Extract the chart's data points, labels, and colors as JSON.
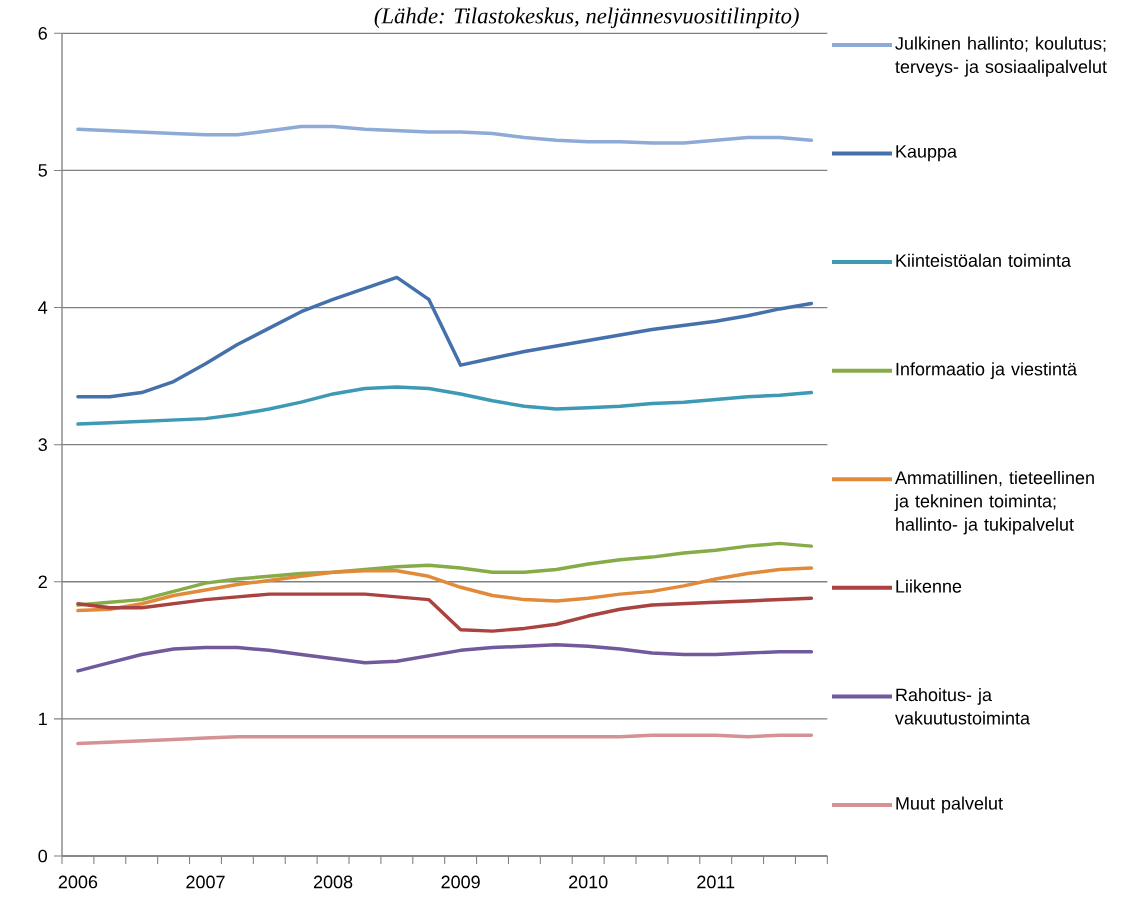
{
  "chart_data": {
    "type": "line",
    "annotations": [
      "(Lähde: Tilastokeskus, neljännesvuositilinpito)"
    ],
    "categories": [
      "2006",
      null,
      null,
      null,
      "2007",
      null,
      null,
      null,
      "2008",
      null,
      null,
      null,
      "2009",
      null,
      null,
      null,
      "2010",
      null,
      null,
      null,
      "2011",
      null,
      null,
      null
    ],
    "ylim": [
      0,
      6
    ],
    "yticks": [
      0,
      1,
      2,
      3,
      4,
      5,
      6
    ],
    "grid": "y",
    "legend": "right",
    "line_style": "solid",
    "series": [
      {
        "name": "Julkinen hallinto; koulutus; terveys- ja sosiaalipalvelut",
        "color": "#8eaad6",
        "values": [
          5.3,
          5.29,
          5.28,
          5.27,
          5.26,
          5.26,
          5.29,
          5.32,
          5.32,
          5.3,
          5.29,
          5.28,
          5.28,
          5.27,
          5.24,
          5.22,
          5.21,
          5.21,
          5.2,
          5.2,
          5.22,
          5.24,
          5.24,
          5.22
        ]
      },
      {
        "name": "Kauppa",
        "color": "#4470ab",
        "values": [
          3.35,
          3.35,
          3.38,
          3.46,
          3.59,
          3.73,
          3.85,
          3.97,
          4.06,
          4.14,
          4.22,
          4.06,
          3.58,
          3.63,
          3.68,
          3.72,
          3.76,
          3.8,
          3.84,
          3.87,
          3.9,
          3.94,
          3.99,
          4.03
        ]
      },
      {
        "name": "Kiinteistöalan toiminta",
        "color": "#3e9ab4",
        "values": [
          3.15,
          3.16,
          3.17,
          3.18,
          3.19,
          3.22,
          3.26,
          3.31,
          3.37,
          3.41,
          3.42,
          3.41,
          3.37,
          3.32,
          3.28,
          3.26,
          3.27,
          3.28,
          3.3,
          3.31,
          3.33,
          3.35,
          3.36,
          3.38
        ]
      },
      {
        "name": "Informaatio ja viestintä",
        "color": "#86ac48",
        "values": [
          1.83,
          1.85,
          1.87,
          1.93,
          1.99,
          2.02,
          2.04,
          2.06,
          2.07,
          2.09,
          2.11,
          2.12,
          2.1,
          2.07,
          2.07,
          2.09,
          2.13,
          2.16,
          2.18,
          2.21,
          2.23,
          2.26,
          2.28,
          2.26
        ]
      },
      {
        "name": "Ammatillinen, tieteellinen ja tekninen toiminta; hallinto- ja tukipalvelut",
        "color": "#e08a3a",
        "values": [
          1.79,
          1.8,
          1.84,
          1.9,
          1.94,
          1.98,
          2.01,
          2.04,
          2.07,
          2.08,
          2.08,
          2.04,
          1.96,
          1.9,
          1.87,
          1.86,
          1.88,
          1.91,
          1.93,
          1.97,
          2.02,
          2.06,
          2.09,
          2.1
        ]
      },
      {
        "name": "Liikenne",
        "color": "#aa4240",
        "values": [
          1.84,
          1.81,
          1.81,
          1.84,
          1.87,
          1.89,
          1.91,
          1.91,
          1.91,
          1.91,
          1.89,
          1.87,
          1.65,
          1.64,
          1.66,
          1.69,
          1.75,
          1.8,
          1.83,
          1.84,
          1.85,
          1.86,
          1.87,
          1.88
        ]
      },
      {
        "name": "Rahoitus- ja vakuutustoiminta",
        "color": "#71599b",
        "values": [
          1.35,
          1.41,
          1.47,
          1.51,
          1.52,
          1.52,
          1.5,
          1.47,
          1.44,
          1.41,
          1.42,
          1.46,
          1.5,
          1.52,
          1.53,
          1.54,
          1.53,
          1.51,
          1.48,
          1.47,
          1.47,
          1.48,
          1.49,
          1.49
        ]
      },
      {
        "name": "Muut palvelut",
        "color": "#d59294",
        "values": [
          0.82,
          0.83,
          0.84,
          0.85,
          0.86,
          0.87,
          0.87,
          0.87,
          0.87,
          0.87,
          0.87,
          0.87,
          0.87,
          0.87,
          0.87,
          0.87,
          0.87,
          0.87,
          0.88,
          0.88,
          0.88,
          0.87,
          0.88,
          0.88
        ]
      }
    ]
  }
}
